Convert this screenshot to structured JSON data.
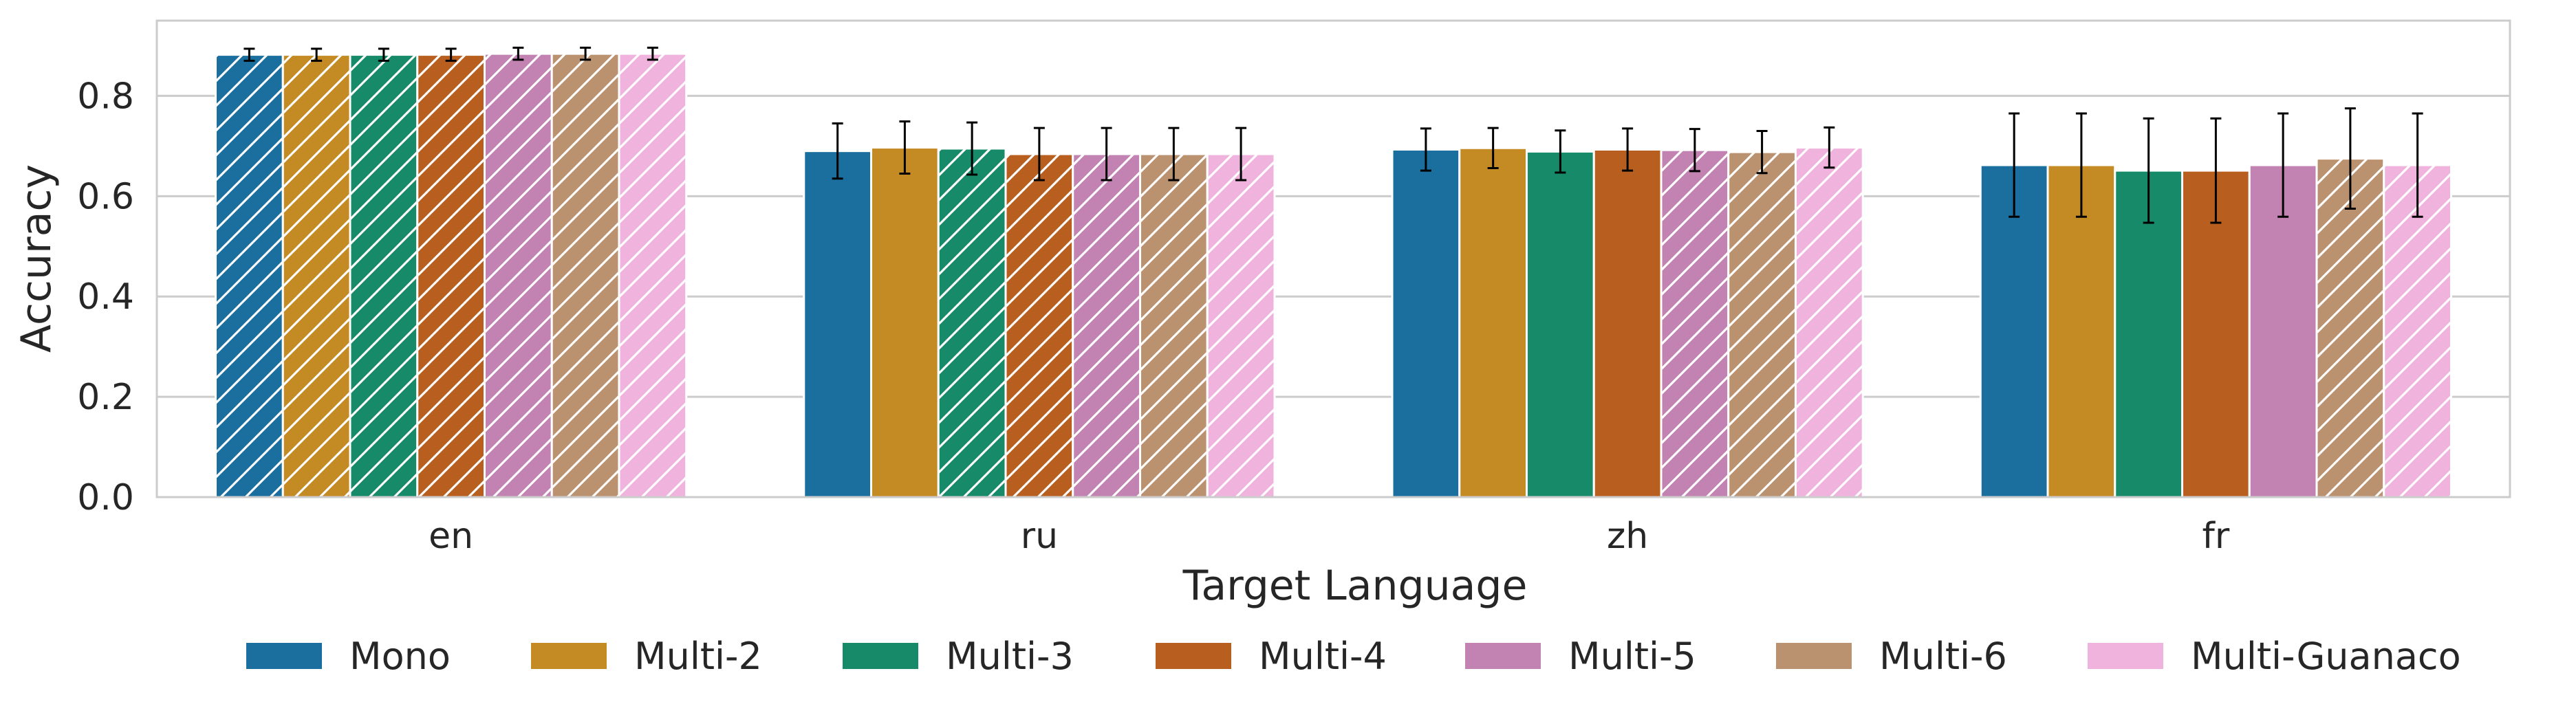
{
  "chart_data": {
    "type": "bar",
    "xlabel": "Target Language",
    "ylabel": "Accuracy",
    "categories": [
      "en",
      "ru",
      "zh",
      "fr"
    ],
    "ylim": [
      0,
      0.95
    ],
    "yticks": [
      "0.0",
      "0.2",
      "0.4",
      "0.6",
      "0.8"
    ],
    "grid": true,
    "legend_position": "bottom",
    "series": [
      {
        "name": "Mono",
        "color": "#1a6f9e",
        "values": [
          0.882,
          0.69,
          0.693,
          0.662
        ],
        "errors": [
          0.012,
          0.055,
          0.042,
          0.103
        ],
        "hatched": [
          true,
          false,
          false,
          false
        ]
      },
      {
        "name": "Multi-2",
        "color": "#c48a23",
        "values": [
          0.882,
          0.697,
          0.696,
          0.662
        ],
        "errors": [
          0.012,
          0.052,
          0.04,
          0.103
        ],
        "hatched": [
          true,
          false,
          false,
          false
        ]
      },
      {
        "name": "Multi-3",
        "color": "#178b69",
        "values": [
          0.882,
          0.695,
          0.689,
          0.651
        ],
        "errors": [
          0.012,
          0.052,
          0.042,
          0.104
        ],
        "hatched": [
          true,
          true,
          false,
          false
        ]
      },
      {
        "name": "Multi-4",
        "color": "#b85f1f",
        "values": [
          0.882,
          0.684,
          0.693,
          0.651
        ],
        "errors": [
          0.012,
          0.052,
          0.042,
          0.104
        ],
        "hatched": [
          true,
          true,
          false,
          false
        ]
      },
      {
        "name": "Multi-5",
        "color": "#c283b2",
        "values": [
          0.884,
          0.684,
          0.692,
          0.662
        ],
        "errors": [
          0.012,
          0.052,
          0.042,
          0.103
        ],
        "hatched": [
          true,
          true,
          true,
          false
        ]
      },
      {
        "name": "Multi-6",
        "color": "#bb9270",
        "values": [
          0.884,
          0.684,
          0.688,
          0.675
        ],
        "errors": [
          0.012,
          0.052,
          0.042,
          0.1
        ],
        "hatched": [
          true,
          true,
          true,
          true
        ]
      },
      {
        "name": "Multi-Guanaco",
        "color": "#f0b3dd",
        "values": [
          0.884,
          0.684,
          0.697,
          0.662
        ],
        "errors": [
          0.012,
          0.052,
          0.04,
          0.103
        ],
        "hatched": [
          true,
          true,
          true,
          true
        ]
      }
    ]
  }
}
